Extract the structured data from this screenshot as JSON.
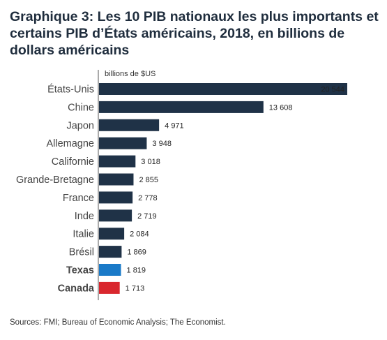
{
  "title": "Graphique 3: Les 10 PIB nationaux les plus importants et certains PIB d’États américains, 2018, en billions de dollars américains",
  "source": "Sources: FMI; Bureau of Economic Analysis; The Economist.",
  "chart_data": {
    "type": "bar",
    "orientation": "horizontal",
    "unit_label": "billions de $US",
    "categories": [
      "États-Unis",
      "Chine",
      "Japon",
      "Allemagne",
      "Californie",
      "Grande-Bretagne",
      "France",
      "Inde",
      "Italie",
      "Brésil",
      "Texas",
      "Canada"
    ],
    "values": [
      20544,
      13608,
      4971,
      3948,
      3018,
      2855,
      2778,
      2719,
      2084,
      1869,
      1819,
      1713
    ],
    "value_labels": [
      "20 544",
      "13 608",
      "4 971",
      "3 948",
      "3 018",
      "2 855",
      "2 778",
      "2 719",
      "2 084",
      "1 869",
      "1 819",
      "1 713"
    ],
    "bar_colors": [
      "#1f3247",
      "#1f3247",
      "#1f3247",
      "#1f3247",
      "#1f3247",
      "#1f3247",
      "#1f3247",
      "#1f3247",
      "#1f3247",
      "#1f3247",
      "#1a7ac8",
      "#d9272e"
    ],
    "label_colors": [
      "#444444",
      "#444444",
      "#444444",
      "#444444",
      "#444444",
      "#444444",
      "#444444",
      "#444444",
      "#444444",
      "#444444",
      "#1a7ac8",
      "#d9272e"
    ],
    "value_label_colors": [
      "#ffffff",
      "#222222",
      "#222222",
      "#222222",
      "#222222",
      "#222222",
      "#222222",
      "#222222",
      "#222222",
      "#222222",
      "#1a7ac8",
      "#d9272e"
    ],
    "bold_categories": [
      "Texas",
      "Canada"
    ],
    "xlim": [
      0,
      20544
    ]
  }
}
